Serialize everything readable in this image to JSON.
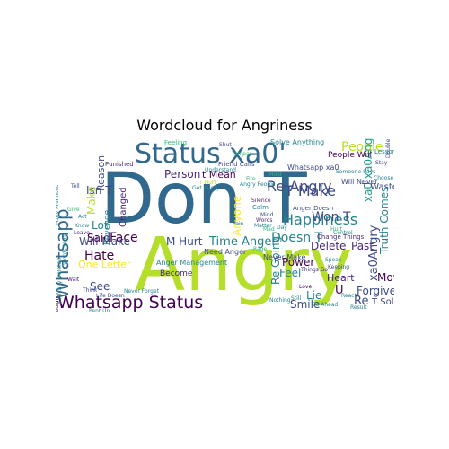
{
  "figure": {
    "title": "Wordcloud for Angriness"
  },
  "palette": {
    "dark_purple": "#440154",
    "purple": "#482878",
    "indigo": "#3e4a89",
    "blue": "#31688e",
    "teal": "#26828e",
    "teal_green": "#1f9e89",
    "green": "#35b779",
    "lime": "#6ece58",
    "yellow_green": "#b5de2b",
    "yellow": "#fde725"
  },
  "words": [
    {
      "text": "Don T"
    },
    {
      "text": "Angry"
    },
    {
      "text": "Status xa0'"
    },
    {
      "text": "Whatsapp Status"
    },
    {
      "text": "Whatsapp"
    },
    {
      "text": "Re Angry"
    },
    {
      "text": "T Make"
    },
    {
      "text": "Happiness"
    },
    {
      "text": "People"
    },
    {
      "text": "Won T"
    },
    {
      "text": "Doesn T"
    },
    {
      "text": "xa0Angry"
    },
    {
      "text": "xa0 xa0Angry"
    },
    {
      "text": "Truth Comes"
    },
    {
      "text": "Face"
    },
    {
      "text": "Hate"
    },
    {
      "text": "Will Make"
    },
    {
      "text": "M Hurt"
    },
    {
      "text": "Time Anger"
    },
    {
      "text": "Delete"
    },
    {
      "text": "Past"
    },
    {
      "text": "Smile"
    },
    {
      "text": "Forgive"
    },
    {
      "text": "Move"
    },
    {
      "text": "Heart"
    },
    {
      "text": "Lie"
    },
    {
      "text": "Feel"
    },
    {
      "text": "Power"
    },
    {
      "text": "One Letter"
    },
    {
      "text": "See"
    },
    {
      "text": "Lot"
    },
    {
      "text": "Said"
    },
    {
      "text": "Changed"
    },
    {
      "text": "Reason"
    },
    {
      "text": "Isn T"
    },
    {
      "text": "Make"
    },
    {
      "text": "Person"
    },
    {
      "text": "t Mean"
    },
    {
      "text": "Anyone"
    },
    {
      "text": "Re Going"
    },
    {
      "text": "Re"
    },
    {
      "text": "T Solve"
    },
    {
      "text": "U"
    },
    {
      "text": "T Waste"
    },
    {
      "text": "Will Never"
    },
    {
      "text": "Never Make"
    },
    {
      "text": "Need Anger"
    },
    {
      "text": "Become"
    },
    {
      "text": "Anger Management"
    },
    {
      "text": "Revenge"
    },
    {
      "text": "Whatsapp xa0"
    },
    {
      "text": "People Will"
    },
    {
      "text": "Solve Anything"
    },
    {
      "text": "Friend Calls"
    },
    {
      "text": "Feeling"
    },
    {
      "text": "Punished"
    },
    {
      "text": "Change Things"
    },
    {
      "text": "Destroy Everything"
    },
    {
      "text": "Big Mouths"
    },
    {
      "text": "Every Minute"
    },
    {
      "text": "Wrong Ones"
    },
    {
      "text": "Pent Up"
    },
    {
      "text": "Nothing"
    },
    {
      "text": "Still"
    },
    {
      "text": "Life Doesn"
    },
    {
      "text": "Never Forget"
    },
    {
      "text": "Get Angry"
    },
    {
      "text": "T Hurt"
    },
    {
      "text": "Anger Doesn"
    },
    {
      "text": "Keeping"
    },
    {
      "text": "Understand"
    },
    {
      "text": "Lesson"
    },
    {
      "text": "Temper"
    },
    {
      "text": "Calm"
    },
    {
      "text": "Shut"
    },
    {
      "text": "Matter"
    },
    {
      "text": "Hold"
    },
    {
      "text": "Fire"
    },
    {
      "text": "Silence"
    },
    {
      "text": "Control"
    },
    {
      "text": "Mind"
    },
    {
      "text": "Pain"
    },
    {
      "text": "Rage"
    },
    {
      "text": "Love"
    },
    {
      "text": "Speak"
    },
    {
      "text": "Hurt"
    },
    {
      "text": "Words"
    },
    {
      "text": "Mad"
    },
    {
      "text": "Day"
    },
    {
      "text": "Think"
    },
    {
      "text": "Wait"
    },
    {
      "text": "Know"
    },
    {
      "text": "Give"
    },
    {
      "text": "Leave"
    },
    {
      "text": "Act"
    },
    {
      "text": "Tell"
    },
    {
      "text": "Many Promises"
    },
    {
      "text": "Basically Deleted"
    },
    {
      "text": "Wouldn T"
    },
    {
      "text": "Words Hurt"
    },
    {
      "text": "Angry People"
    },
    {
      "text": "Someone Says"
    },
    {
      "text": "Things Go"
    },
    {
      "text": "React"
    },
    {
      "text": "Go Ahead"
    },
    {
      "text": "Double Finger"
    },
    {
      "text": "Result"
    },
    {
      "text": "Stay"
    },
    {
      "text": "Choose"
    }
  ]
}
